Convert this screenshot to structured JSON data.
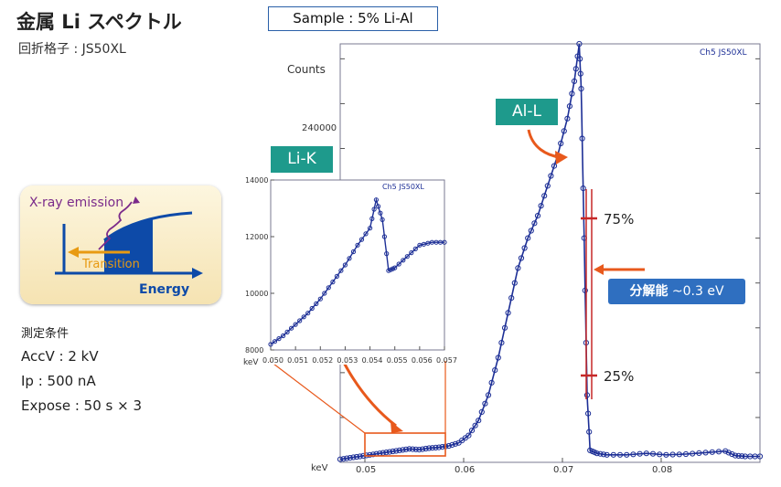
{
  "header": {
    "title": "金属 Li スペクトル",
    "grating": "回折格子 : JS50XL"
  },
  "sample": {
    "label": "Sample : 5% Li-Al"
  },
  "conditions": {
    "title": "測定条件",
    "accv": "AccV : 2 kV",
    "ip": "Ip : 500 nA",
    "expose": "Expose : 50 s × 3"
  },
  "diagram": {
    "emission": "X-ray emission",
    "transition": "Transition",
    "energy": "Energy"
  },
  "tags": {
    "li_k": "Li-K",
    "al_l": "Al-L"
  },
  "resolution": {
    "label": "分解能",
    "value": "~0.3 eV"
  },
  "markers": {
    "p75": "75%",
    "p25": "25%"
  },
  "colors": {
    "teal": "#1e9a8c",
    "curve": "#1d2f96",
    "orange": "#e8591c",
    "red": "#c62828",
    "blue": "#2f6fc0"
  },
  "chart_data": [
    {
      "type": "line",
      "name": "main",
      "stamp": "Ch5 JS50XL",
      "ylabel": "Counts",
      "xunit": "keV",
      "xlim": [
        0.0475,
        0.09
      ],
      "ylim": [
        0,
        280000
      ],
      "xticks": [
        "0.05",
        "0.06",
        "0.07",
        "0.08"
      ],
      "yticks": [
        "240000"
      ],
      "x": [
        0.0475,
        0.0485,
        0.0495,
        0.0505,
        0.0515,
        0.0525,
        0.0535,
        0.0545,
        0.0555,
        0.0565,
        0.0575,
        0.0585,
        0.0595,
        0.0605,
        0.0615,
        0.0625,
        0.0635,
        0.0645,
        0.0655,
        0.0665,
        0.0675,
        0.0685,
        0.0695,
        0.0705,
        0.0712,
        0.0717,
        0.0719,
        0.0722,
        0.0725,
        0.0728,
        0.0735,
        0.0745,
        0.0765,
        0.0785,
        0.0805,
        0.0825,
        0.0845,
        0.0865,
        0.0875,
        0.0885,
        0.09
      ],
      "y": [
        2000,
        3000,
        4000,
        5000,
        6000,
        7000,
        8000,
        9000,
        8500,
        9500,
        10000,
        11000,
        13000,
        18000,
        28000,
        45000,
        70000,
        100000,
        130000,
        150000,
        165000,
        185000,
        205000,
        230000,
        255000,
        280000,
        250000,
        150000,
        45000,
        8000,
        6000,
        5000,
        5000,
        6000,
        5000,
        5500,
        6500,
        7500,
        4500,
        4000,
        4000
      ]
    },
    {
      "type": "line",
      "name": "inset",
      "stamp": "Ch5 JS50XL",
      "xunit": "keV",
      "xlim": [
        0.05,
        0.057
      ],
      "ylim": [
        8000,
        14000
      ],
      "xticks": [
        "0.050",
        "0.051",
        "0.052",
        "0.053",
        "0.054",
        "0.055",
        "0.056",
        "0.057"
      ],
      "yticks": [
        "8000",
        "10000",
        "12000",
        "14000"
      ],
      "x": [
        0.05,
        0.0505,
        0.051,
        0.0515,
        0.052,
        0.0525,
        0.053,
        0.0535,
        0.054,
        0.05425,
        0.0545,
        0.05475,
        0.055,
        0.0555,
        0.056,
        0.0565,
        0.057
      ],
      "y": [
        8200,
        8500,
        8900,
        9300,
        9800,
        10400,
        11000,
        11700,
        12300,
        13300,
        12600,
        10800,
        10900,
        11300,
        11700,
        11800,
        11800
      ]
    }
  ]
}
